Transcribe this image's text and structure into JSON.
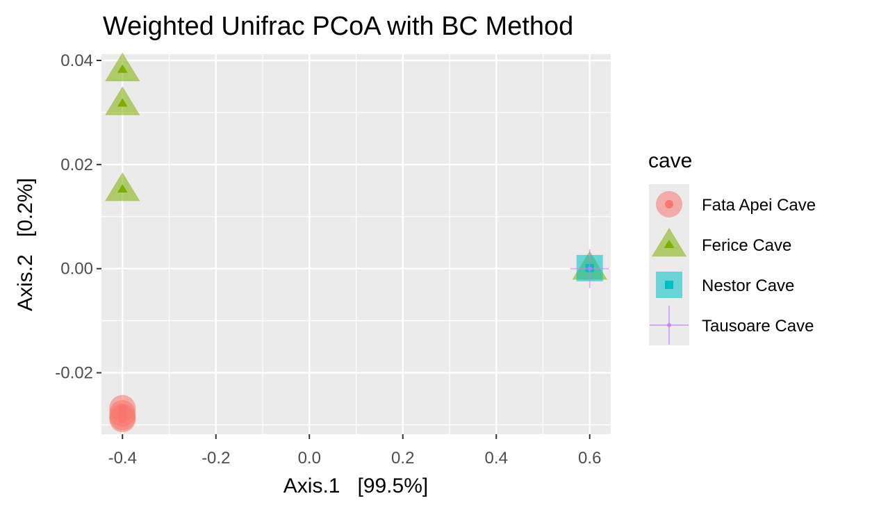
{
  "chart_data": {
    "type": "scatter",
    "title": "Weighted Unifrac PCoA with BC Method",
    "xlabel": "Axis.1   [99.5%]",
    "ylabel": "Axis.2   [0.2%]",
    "xlim": [
      -0.445,
      0.645
    ],
    "ylim": [
      -0.0318,
      0.0412
    ],
    "x_ticks": [
      -0.4,
      -0.2,
      0.0,
      0.2,
      0.4,
      0.6
    ],
    "x_tick_labels": [
      "-0.4",
      "-0.2",
      "0.0",
      "0.2",
      "0.4",
      "0.6"
    ],
    "y_ticks": [
      -0.02,
      0.0,
      0.02,
      0.04
    ],
    "y_tick_labels": [
      "-0.02",
      "0.00",
      "0.02",
      "0.04"
    ],
    "grid": true,
    "legend": {
      "title": "cave",
      "placement": "right"
    },
    "series": [
      {
        "name": "Fata Apei Cave",
        "shape": "circle",
        "color": "#F8766D",
        "points": [
          {
            "x": -0.4,
            "y": -0.0268
          },
          {
            "x": -0.4,
            "y": -0.0278
          },
          {
            "x": -0.4,
            "y": -0.0285
          },
          {
            "x": -0.4,
            "y": -0.0289
          }
        ]
      },
      {
        "name": "Ferice Cave",
        "shape": "triangle",
        "color": "#7CAE00",
        "points": [
          {
            "x": -0.4,
            "y": 0.0383
          },
          {
            "x": -0.4,
            "y": 0.0318
          },
          {
            "x": -0.4,
            "y": 0.0153
          },
          {
            "x": 0.6,
            "y": 0.0002
          }
        ]
      },
      {
        "name": "Nestor Cave",
        "shape": "square",
        "color": "#00BFC4",
        "points": [
          {
            "x": 0.6,
            "y": 0.0001
          }
        ]
      },
      {
        "name": "Tausoare Cave",
        "shape": "plus",
        "color": "#C77CFF",
        "points": [
          {
            "x": 0.6,
            "y": 0.0
          }
        ]
      }
    ]
  }
}
